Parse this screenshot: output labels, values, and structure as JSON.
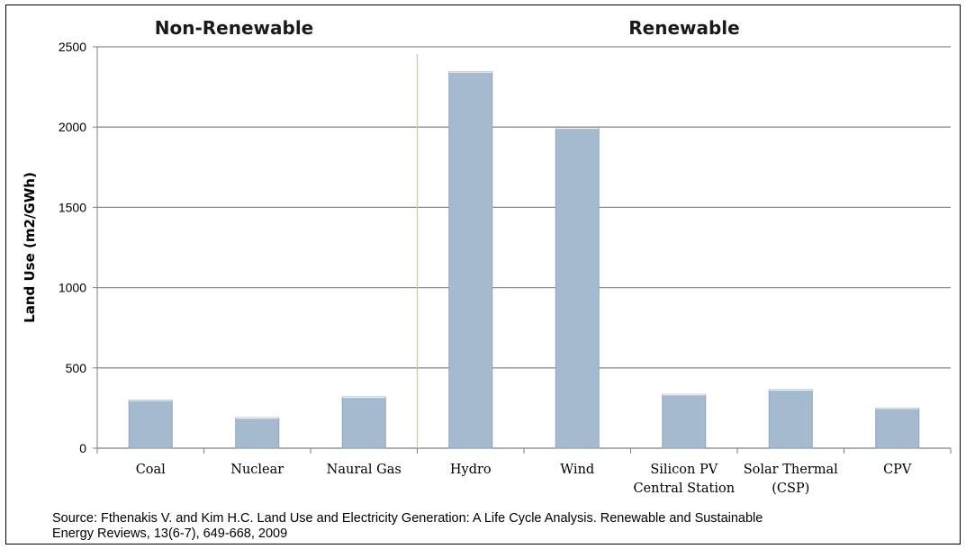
{
  "chart_data": {
    "type": "bar",
    "groups": [
      {
        "label": "Non-Renewable",
        "categories": [
          "Coal",
          "Nuclear",
          "Naural Gas"
        ]
      },
      {
        "label": "Renewable",
        "categories": [
          "Hydro",
          "Wind",
          "Silicon PV Central Station",
          "Solar Thermal (CSP)",
          "CPV"
        ]
      }
    ],
    "categories": [
      [
        "Coal"
      ],
      [
        "Nuclear"
      ],
      [
        "Naural Gas"
      ],
      [
        "Hydro"
      ],
      [
        "Wind"
      ],
      [
        "Silicon PV",
        "Central Station"
      ],
      [
        "Solar Thermal",
        "(CSP)"
      ],
      [
        "CPV"
      ]
    ],
    "values": [
      300,
      190,
      320,
      2345,
      1995,
      335,
      365,
      250
    ],
    "ylabel": "Land Use (m2/GWh)",
    "xlabel": "",
    "ylim": [
      0,
      2500
    ],
    "yticks": [
      0,
      500,
      1000,
      1500,
      2000,
      2500
    ],
    "grid": true,
    "legend": "none",
    "colors": {
      "bar": "#a5b9cf",
      "bar_edge": "#8fa5bd",
      "grid": "#8c8c8c",
      "axis": "#7f7f7f",
      "group_divider": "#c6d96e"
    }
  },
  "source": {
    "line1": "Source:  Fthenakis V. and Kim H.C. Land Use and Electricity Generation:  A Life Cycle Analysis.  Renewable and Sustainable",
    "line2": "Energy Reviews, 13(6-7), 649-668, 2009"
  }
}
